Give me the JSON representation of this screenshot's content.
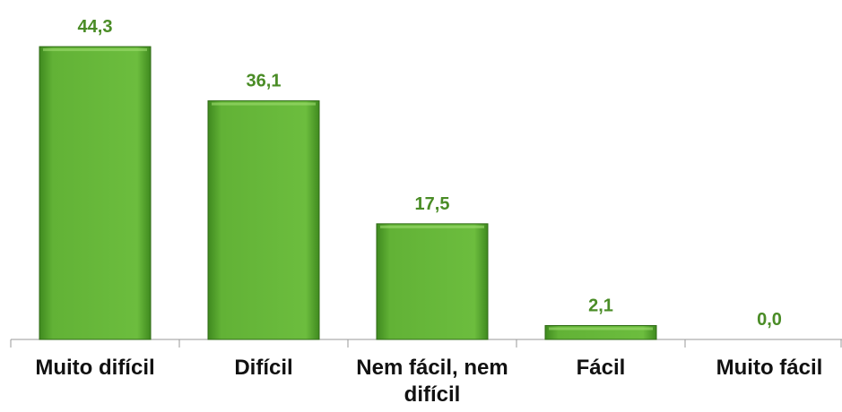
{
  "chart_data": {
    "type": "bar",
    "categories": [
      "Muito difícil",
      "Difícil",
      "Nem fácil, nem difícil",
      "Fácil",
      "Muito fácil"
    ],
    "values": [
      44.3,
      36.1,
      17.5,
      2.1,
      0.0
    ],
    "value_labels": [
      "44,3",
      "36,1",
      "17,5",
      "2,1",
      "0,0"
    ],
    "color": "#5fae34"
  }
}
